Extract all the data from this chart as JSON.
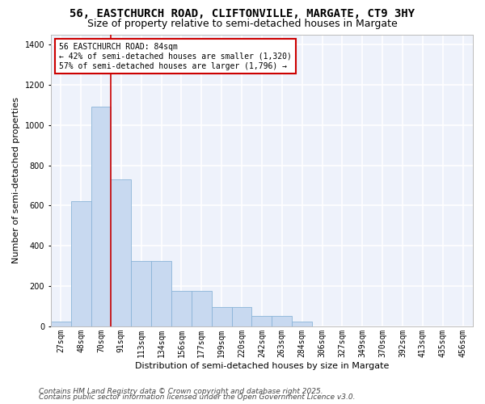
{
  "title": "56, EASTCHURCH ROAD, CLIFTONVILLE, MARGATE, CT9 3HY",
  "subtitle": "Size of property relative to semi-detached houses in Margate",
  "xlabel": "Distribution of semi-detached houses by size in Margate",
  "ylabel": "Number of semi-detached properties",
  "categories": [
    "27sqm",
    "48sqm",
    "70sqm",
    "91sqm",
    "113sqm",
    "134sqm",
    "156sqm",
    "177sqm",
    "199sqm",
    "220sqm",
    "242sqm",
    "263sqm",
    "284sqm",
    "306sqm",
    "327sqm",
    "349sqm",
    "370sqm",
    "392sqm",
    "413sqm",
    "435sqm",
    "456sqm"
  ],
  "values": [
    25,
    620,
    1090,
    730,
    325,
    325,
    175,
    175,
    95,
    95,
    50,
    50,
    25,
    0,
    0,
    0,
    0,
    0,
    0,
    0,
    0
  ],
  "bar_color": "#c8d9f0",
  "bar_edge_color": "#8ab4d8",
  "vline_color": "#cc0000",
  "vline_x": 2.5,
  "annotation_title": "56 EASTCHURCH ROAD: 84sqm",
  "annotation_line1": "← 42% of semi-detached houses are smaller (1,320)",
  "annotation_line2": "57% of semi-detached houses are larger (1,796) →",
  "annotation_box_color": "#ffffff",
  "annotation_box_edge": "#cc0000",
  "background_color": "#eef2fb",
  "grid_color": "#ffffff",
  "ylim": [
    0,
    1450
  ],
  "yticks": [
    0,
    200,
    400,
    600,
    800,
    1000,
    1200,
    1400
  ],
  "title_fontsize": 10,
  "subtitle_fontsize": 9,
  "axis_label_fontsize": 8,
  "tick_fontsize": 7,
  "annotation_fontsize": 7,
  "footer_fontsize": 6.5,
  "footer_line1": "Contains HM Land Registry data © Crown copyright and database right 2025.",
  "footer_line2": "Contains public sector information licensed under the Open Government Licence v3.0."
}
